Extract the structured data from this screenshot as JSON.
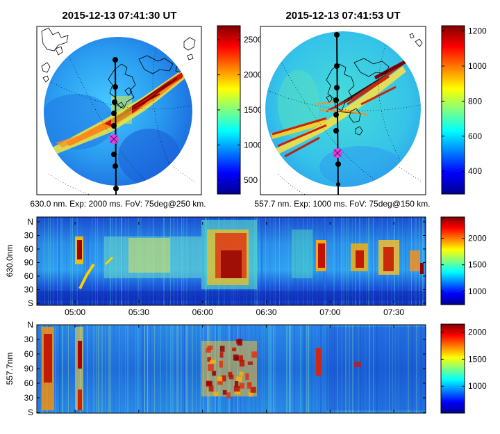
{
  "figure": {
    "left_title": "2015-12-13 07:41:30 UT",
    "right_title": "2015-12-13 07:41:53 UT",
    "left_caption": "630.0 nm. Exp: 2000 ms. FoV: 75deg@250 km.",
    "right_caption": "557.7 nm. Exp: 1000 ms. FoV: 75deg@150 km."
  },
  "colors": {
    "colormap": "jet",
    "meridian_line": "#000000",
    "marker": "#e040e0",
    "coastline": "#000000"
  },
  "chart_data": [
    {
      "type": "heatmap",
      "panel": "all-sky image 630.0 nm",
      "title": "2015-12-13 07:41:30 UT",
      "colorbar": {
        "min": 300,
        "max": 2700,
        "ticks": [
          500,
          1000,
          1500,
          2000,
          2500
        ]
      },
      "meridian_points": 8,
      "marker": "magenta circle on meridian"
    },
    {
      "type": "heatmap",
      "panel": "all-sky image 557.7 nm",
      "title": "2015-12-13 07:41:53 UT",
      "colorbar": {
        "min": 270,
        "max": 1230,
        "ticks": [
          400,
          600,
          800,
          1000,
          1200
        ]
      },
      "meridian_points": 8,
      "marker": "magenta circle on meridian"
    },
    {
      "type": "heatmap",
      "panel": "keogram 630.0 nm",
      "ylabel": "630.0nm",
      "yticks": [
        "N",
        "30",
        "60",
        "90",
        "60",
        "30",
        "S"
      ],
      "xticks": [
        "05:00",
        "05:30",
        "06:00",
        "06:30",
        "07:00",
        "07:30"
      ],
      "xlim": [
        "04:42",
        "07:45"
      ],
      "colorbar": {
        "min": 750,
        "max": 2400,
        "ticks": [
          1000,
          1500,
          2000
        ]
      }
    },
    {
      "type": "heatmap",
      "panel": "keogram 557.7 nm",
      "ylabel": "557.7nm",
      "yticks": [
        "N",
        "30",
        "60",
        "90",
        "60",
        "30",
        "S"
      ],
      "xticks": [
        "05:00",
        "05:30",
        "06:00",
        "06:30",
        "07:00",
        "07:30"
      ],
      "xlim": [
        "04:42",
        "07:45"
      ],
      "colorbar": {
        "min": 500,
        "max": 2150,
        "ticks": [
          1000,
          1500,
          2000
        ]
      }
    }
  ]
}
